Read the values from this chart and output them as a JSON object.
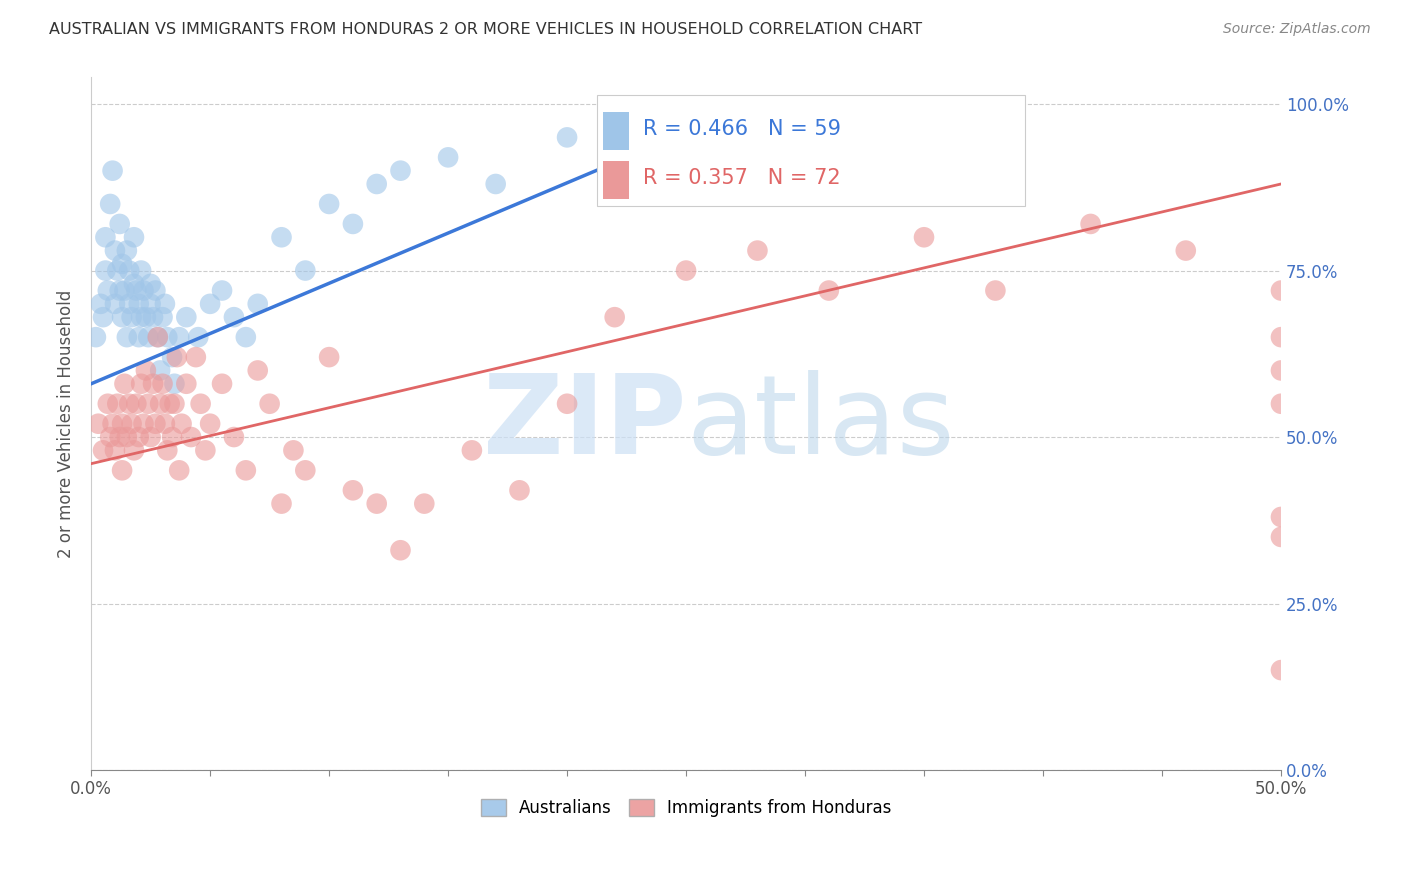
{
  "title": "AUSTRALIAN VS IMMIGRANTS FROM HONDURAS 2 OR MORE VEHICLES IN HOUSEHOLD CORRELATION CHART",
  "source": "Source: ZipAtlas.com",
  "ylabel_label": "2 or more Vehicles in Household",
  "xmin": 0.0,
  "xmax": 0.5,
  "ymin": 0.0,
  "ymax": 1.04,
  "ytick_vals": [
    0.0,
    0.25,
    0.5,
    0.75,
    1.0
  ],
  "ytick_labels": [
    "0.0%",
    "25.0%",
    "50.0%",
    "75.0%",
    "100.0%"
  ],
  "xtick_vals": [
    0.0,
    0.05,
    0.1,
    0.15,
    0.2,
    0.25,
    0.3,
    0.35,
    0.4,
    0.45,
    0.5
  ],
  "xtick_labels": [
    "0.0%",
    "",
    "",
    "",
    "",
    "",
    "",
    "",
    "",
    "",
    "50.0%"
  ],
  "blue_R": 0.466,
  "blue_N": 59,
  "pink_R": 0.357,
  "pink_N": 72,
  "blue_color": "#9fc5e8",
  "pink_color": "#ea9999",
  "blue_line_color": "#3c78d8",
  "pink_line_color": "#e06666",
  "legend_label_blue": "Australians",
  "legend_label_pink": "Immigrants from Honduras",
  "blue_scatter_x": [
    0.002,
    0.004,
    0.005,
    0.006,
    0.006,
    0.007,
    0.008,
    0.009,
    0.01,
    0.01,
    0.011,
    0.012,
    0.012,
    0.013,
    0.013,
    0.014,
    0.015,
    0.015,
    0.016,
    0.016,
    0.017,
    0.018,
    0.018,
    0.019,
    0.02,
    0.02,
    0.021,
    0.021,
    0.022,
    0.023,
    0.024,
    0.025,
    0.025,
    0.026,
    0.027,
    0.028,
    0.029,
    0.03,
    0.031,
    0.032,
    0.034,
    0.035,
    0.037,
    0.04,
    0.045,
    0.05,
    0.055,
    0.06,
    0.065,
    0.07,
    0.08,
    0.09,
    0.1,
    0.11,
    0.12,
    0.13,
    0.15,
    0.17,
    0.2
  ],
  "blue_scatter_y": [
    0.65,
    0.7,
    0.68,
    0.75,
    0.8,
    0.72,
    0.85,
    0.9,
    0.78,
    0.7,
    0.75,
    0.72,
    0.82,
    0.68,
    0.76,
    0.72,
    0.78,
    0.65,
    0.7,
    0.75,
    0.68,
    0.73,
    0.8,
    0.72,
    0.7,
    0.65,
    0.68,
    0.75,
    0.72,
    0.68,
    0.65,
    0.7,
    0.73,
    0.68,
    0.72,
    0.65,
    0.6,
    0.68,
    0.7,
    0.65,
    0.62,
    0.58,
    0.65,
    0.68,
    0.65,
    0.7,
    0.72,
    0.68,
    0.65,
    0.7,
    0.8,
    0.75,
    0.85,
    0.82,
    0.88,
    0.9,
    0.92,
    0.88,
    0.95
  ],
  "pink_scatter_x": [
    0.003,
    0.005,
    0.007,
    0.008,
    0.009,
    0.01,
    0.011,
    0.012,
    0.013,
    0.013,
    0.014,
    0.015,
    0.016,
    0.017,
    0.018,
    0.019,
    0.02,
    0.021,
    0.022,
    0.023,
    0.024,
    0.025,
    0.026,
    0.027,
    0.028,
    0.029,
    0.03,
    0.031,
    0.032,
    0.033,
    0.034,
    0.035,
    0.036,
    0.037,
    0.038,
    0.04,
    0.042,
    0.044,
    0.046,
    0.048,
    0.05,
    0.055,
    0.06,
    0.065,
    0.07,
    0.075,
    0.08,
    0.085,
    0.09,
    0.1,
    0.11,
    0.12,
    0.13,
    0.14,
    0.16,
    0.18,
    0.2,
    0.22,
    0.25,
    0.28,
    0.31,
    0.35,
    0.38,
    0.42,
    0.46,
    0.5,
    0.5,
    0.5,
    0.5,
    0.5,
    0.5,
    0.5
  ],
  "pink_scatter_y": [
    0.52,
    0.48,
    0.55,
    0.5,
    0.52,
    0.48,
    0.55,
    0.5,
    0.52,
    0.45,
    0.58,
    0.5,
    0.55,
    0.52,
    0.48,
    0.55,
    0.5,
    0.58,
    0.52,
    0.6,
    0.55,
    0.5,
    0.58,
    0.52,
    0.65,
    0.55,
    0.58,
    0.52,
    0.48,
    0.55,
    0.5,
    0.55,
    0.62,
    0.45,
    0.52,
    0.58,
    0.5,
    0.62,
    0.55,
    0.48,
    0.52,
    0.58,
    0.5,
    0.45,
    0.6,
    0.55,
    0.4,
    0.48,
    0.45,
    0.62,
    0.42,
    0.4,
    0.33,
    0.4,
    0.48,
    0.42,
    0.55,
    0.68,
    0.75,
    0.78,
    0.72,
    0.8,
    0.72,
    0.82,
    0.78,
    0.72,
    0.6,
    0.55,
    0.65,
    0.38,
    0.35,
    0.15
  ]
}
